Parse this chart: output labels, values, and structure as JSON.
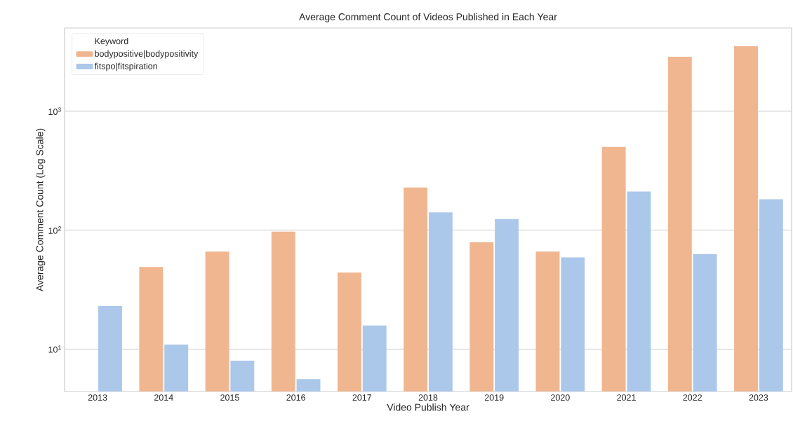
{
  "chart_data": {
    "type": "bar",
    "title": "Average Comment Count of Videos Published in Each Year",
    "xlabel": "Video Publish Year",
    "ylabel": "Average Comment Count (Log Scale)",
    "legend_title": "Keyword",
    "categories": [
      "2013",
      "2014",
      "2015",
      "2016",
      "2017",
      "2018",
      "2019",
      "2020",
      "2021",
      "2022",
      "2023"
    ],
    "series": [
      {
        "name": "bodypositive|bodypositivity",
        "color": "#f0b690",
        "values": [
          null,
          49,
          66,
          97,
          44,
          228,
          79,
          66,
          501,
          2870,
          3520
        ]
      },
      {
        "name": "fitspo|fitspiration",
        "color": "#abc8eb",
        "values": [
          23,
          10.9,
          8.0,
          5.6,
          15.8,
          141,
          124,
          59,
          211,
          63,
          182
        ]
      }
    ],
    "log": true,
    "ylim": [
      4.4,
      5000
    ],
    "yticks": [
      {
        "value": 10,
        "label": "10$^{1}$"
      },
      {
        "value": 100,
        "label": "10$^{2}$"
      },
      {
        "value": 1000,
        "label": "10$^{3}$"
      }
    ],
    "grid": "y",
    "legend": "top left"
  }
}
